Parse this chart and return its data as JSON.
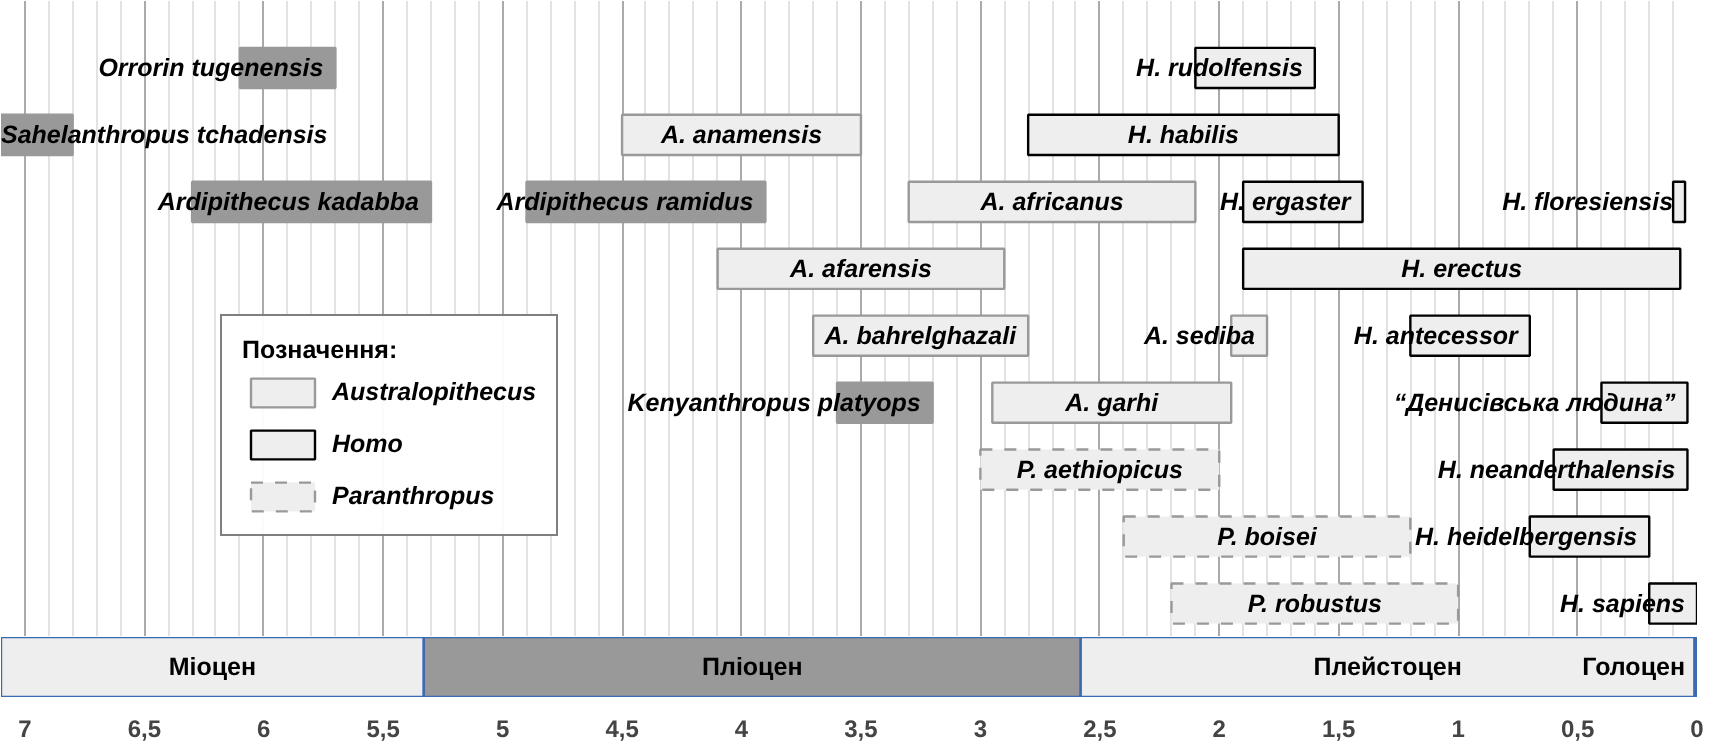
{
  "chart_data": [
    {
      "type": "bar",
      "orientation": "horizontal",
      "legend_title": "Позначення:",
      "legend": "left",
      "grid": "x",
      "tick_labels": false,
      "categories": [
        null,
        null,
        null,
        null,
        null,
        null,
        null,
        null,
        null
      ],
      "xlim": [
        7.1,
        0
      ],
      "series": [
        {
          "name": "Australopithecus",
          "color": "#eeeeee",
          "base": [
            null,
            3.5,
            2.1,
            2.9,
            2.8,
            1.95,
            null,
            null,
            null
          ],
          "values": [
            null,
            1.0,
            1.2,
            1.2,
            0.9,
            1.0,
            null,
            null,
            null
          ],
          "value_labels": [
            null,
            "A. anamensis",
            "A. africanus",
            "A. afarensis",
            "A. bahrelghazali",
            "A. garhi",
            null,
            null,
            null
          ]
        },
        {
          "color": "#eeeeee",
          "base": [
            null,
            null,
            null,
            null,
            1.8,
            null,
            null,
            null,
            null
          ],
          "values": [
            null,
            null,
            null,
            null,
            0.15,
            null,
            null,
            null,
            null
          ],
          "value_labels": [
            null,
            null,
            null,
            null,
            "A. sediba",
            null,
            null,
            null,
            null
          ]
        },
        {
          "name": "Homo",
          "color": "#eeeeee",
          "line_style": "solid",
          "base": [
            1.6,
            1.5,
            1.4,
            0.07,
            0.7,
            0.04,
            0.04,
            0.2,
            0
          ],
          "values": [
            0.5,
            1.3,
            0.5,
            1.83,
            0.5,
            0.36,
            0.56,
            0.5,
            0.2
          ],
          "value_labels": [
            "H. rudolfensis",
            "H. habilis",
            "H. ergaster",
            "H. erectus",
            "H. antecessor",
            "“Денисівська людина”",
            "H. neanderthalensis",
            "H. heidelbergensis",
            "H. sapiens"
          ]
        },
        {
          "color": "#eeeeee",
          "line_style": "solid",
          "base": [
            null,
            null,
            0.05,
            null,
            null,
            null,
            null,
            null,
            null
          ],
          "values": [
            null,
            null,
            0.05,
            null,
            null,
            null,
            null,
            null,
            null
          ],
          "value_labels": [
            null,
            null,
            "H. floresiensis",
            null,
            null,
            null,
            null,
            null,
            null
          ]
        },
        {
          "name": "Paranthropus",
          "color": "#eeeeee",
          "line_style": "dashed",
          "base": [
            null,
            null,
            null,
            null,
            null,
            null,
            2.0,
            1.2,
            1.0
          ],
          "values": [
            null,
            null,
            null,
            null,
            null,
            null,
            1.0,
            1.2,
            1.2
          ],
          "value_labels": [
            null,
            null,
            null,
            null,
            null,
            null,
            "P. aethiopicus",
            "P. boisei",
            "P. robustus"
          ]
        },
        {
          "color": "#999999",
          "base": [
            5.7,
            6.8,
            5.3,
            null,
            null,
            3.2,
            null,
            null,
            null
          ],
          "values": [
            0.4,
            0.3,
            1.0,
            null,
            null,
            0.4,
            null,
            null,
            null
          ],
          "value_labels": [
            "Orrorin tugenensis",
            "Sahelanthropus tchadensis",
            "Ardipithecus kadabba",
            null,
            null,
            "Kenyanthropus platyops",
            null,
            null,
            null
          ]
        },
        {
          "color": "#999999",
          "base": [
            null,
            null,
            3.9,
            null,
            null,
            null,
            null,
            null,
            null
          ],
          "values": [
            null,
            null,
            1.0,
            null,
            null,
            null,
            null,
            null,
            null
          ],
          "value_labels": [
            null,
            null,
            "Ardipithecus ramidus",
            null,
            null,
            null,
            null,
            null,
            null
          ]
        }
      ]
    },
    {
      "type": "bar",
      "orientation": "horizontal",
      "grid": "x",
      "tick_labels": "x",
      "categories": [
        null
      ],
      "xlim": [
        7.1,
        0
      ],
      "xticks": [
        {
          "value": 7,
          "label": "7"
        },
        {
          "value": 6.5,
          "label": "6,5"
        },
        {
          "value": 6,
          "label": "6"
        },
        {
          "value": 5.5,
          "label": "5,5"
        },
        {
          "value": 5,
          "label": "5"
        },
        {
          "value": 4.5,
          "label": "4,5"
        },
        {
          "value": 4,
          "label": "4"
        },
        {
          "value": 3.5,
          "label": "3,5"
        },
        {
          "value": 3,
          "label": "3"
        },
        {
          "value": 2.5,
          "label": "2,5"
        },
        {
          "value": 2,
          "label": "2"
        },
        {
          "value": 1.5,
          "label": "1,5"
        },
        {
          "value": 1,
          "label": "1"
        },
        {
          "value": 0.5,
          "label": "0,5"
        },
        {
          "value": 0,
          "label": "0"
        }
      ],
      "series": [
        {
          "color": "#eeeeee",
          "base": [
            5.33
          ],
          "values": [
            1.77
          ],
          "value_labels": [
            "Міоцен"
          ]
        },
        {
          "color": "#999999",
          "base": [
            2.58
          ],
          "values": [
            2.75
          ],
          "value_labels": [
            "Пліоцен"
          ]
        },
        {
          "color": "#eeeeee",
          "base": [
            0.01
          ],
          "values": [
            2.57
          ],
          "value_labels": [
            "Плейстоцен"
          ]
        },
        {
          "color": "#eeeeee",
          "base": [
            0
          ],
          "values": [
            0.01
          ],
          "value_labels": [
            "Голоцен"
          ]
        }
      ]
    }
  ]
}
